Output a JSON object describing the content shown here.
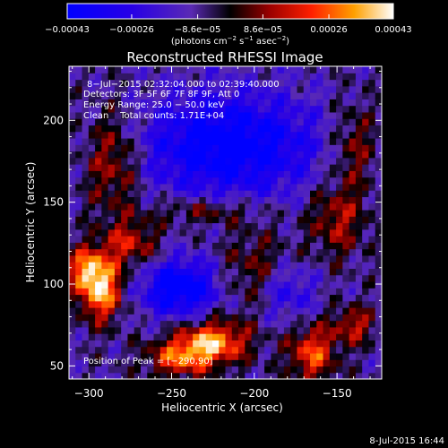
{
  "chart_data": {
    "type": "heatmap",
    "title": "Reconstructed RHESSI Image",
    "xlabel": "Heliocentric X (arcsec)",
    "ylabel": "Heliocentric Y (arcsec)",
    "xlim": [
      -312,
      -123
    ],
    "ylim": [
      42,
      233
    ],
    "xticks": [
      -300,
      -250,
      -200,
      -150
    ],
    "yticks": [
      50,
      100,
      150,
      200
    ],
    "xtick_labels": [
      "−300",
      "−250",
      "−200",
      "−150"
    ],
    "ytick_labels": [
      "50",
      "100",
      "150",
      "200"
    ],
    "grid": false,
    "colorbar": {
      "range": [
        -0.00043,
        0.00043
      ],
      "ticks": [
        -0.00043,
        -0.00026,
        -8.6e-05,
        8.6e-05,
        0.00026,
        0.00043
      ],
      "tick_labels": [
        "−0.00043",
        "−0.00026",
        "−8.6e−05",
        "8.6e−05",
        "0.00026",
        "0.00043"
      ],
      "units_prefix": "(photons cm",
      "units_exp1": "−2",
      "units_mid1": " s",
      "units_exp2": "−1",
      "units_mid2": " asec",
      "units_exp3": "−2",
      "units_suffix": ")"
    },
    "annotations": [
      "8−Jul−2015 02:32:04.000 to 02:39:40.000",
      "Detectors: 3F 5F 6F 7F 8F 9F, Att 0",
      "Energy Range: 25.0 − 50.0 keV",
      "Clean    Total counts: 1.71E+04"
    ],
    "peak_label": "Position of Peak = [−290,90]",
    "peak_position": [
      -290,
      90
    ],
    "sources": [
      {
        "x": -293,
        "y": 97,
        "amp": 1.05,
        "sx": 9,
        "sy": 13
      },
      {
        "x": -302,
        "y": 110,
        "amp": 0.7,
        "sx": 8,
        "sy": 9
      },
      {
        "x": -225,
        "y": 65,
        "amp": 0.95,
        "sx": 15,
        "sy": 9
      },
      {
        "x": -245,
        "y": 55,
        "amp": 0.7,
        "sx": 14,
        "sy": 8
      },
      {
        "x": -165,
        "y": 58,
        "amp": 0.75,
        "sx": 10,
        "sy": 12
      },
      {
        "x": -140,
        "y": 75,
        "amp": 0.55,
        "sx": 9,
        "sy": 8
      },
      {
        "x": -275,
        "y": 125,
        "amp": 0.55,
        "sx": 12,
        "sy": 10
      },
      {
        "x": -150,
        "y": 140,
        "amp": 0.5,
        "sx": 12,
        "sy": 16
      },
      {
        "x": -140,
        "y": 185,
        "amp": 0.45,
        "sx": 10,
        "sy": 18
      },
      {
        "x": -285,
        "y": 175,
        "amp": 0.55,
        "sx": 12,
        "sy": 22
      },
      {
        "x": -230,
        "y": 145,
        "amp": 0.4,
        "sx": 22,
        "sy": 6
      },
      {
        "x": -200,
        "y": 110,
        "amp": 0.35,
        "sx": 14,
        "sy": 18
      }
    ],
    "sinks": [
      {
        "x": -215,
        "y": 185,
        "amp": 0.9,
        "sx": 38,
        "sy": 22
      },
      {
        "x": -245,
        "y": 98,
        "amp": 0.95,
        "sx": 16,
        "sy": 12
      },
      {
        "x": -180,
        "y": 95,
        "amp": 0.45,
        "sx": 12,
        "sy": 12
      }
    ]
  },
  "footer": {
    "timestamp": "8-Jul-2015 16:44"
  },
  "colors": {
    "background": "#000000",
    "foreground": "#ffffff"
  }
}
